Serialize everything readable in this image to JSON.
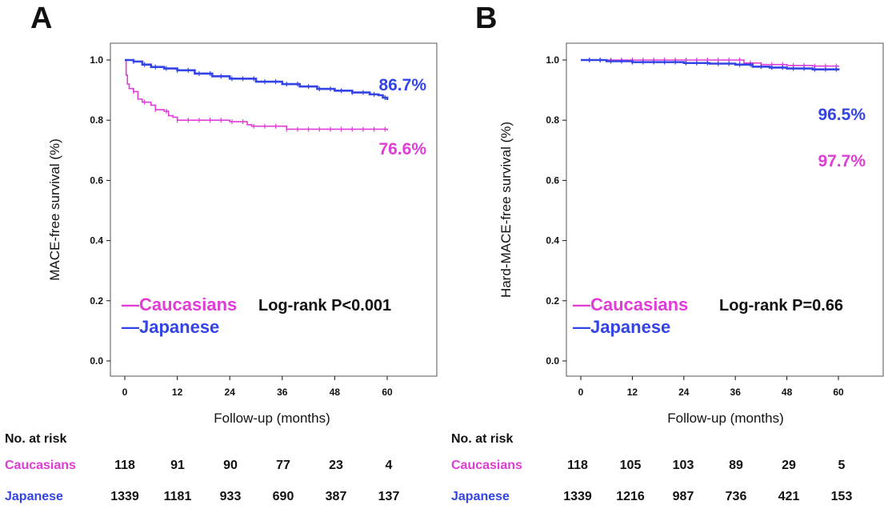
{
  "colors": {
    "caucasians": "#e03cd6",
    "japanese": "#3344e6",
    "axis": "#111111"
  },
  "chart_data": [
    {
      "id": "A",
      "type": "line",
      "panel_label": "A",
      "title": "",
      "ylabel": "MACE-free survival (%)",
      "xlabel": "Follow-up (months)",
      "xlim": [
        0,
        60
      ],
      "ylim": [
        0,
        1.0
      ],
      "xticks": [
        "0",
        "12",
        "24",
        "36",
        "48",
        "60"
      ],
      "yticks": [
        "0.0",
        "0.2",
        "0.4",
        "0.6",
        "0.8",
        "1.0"
      ],
      "series": [
        {
          "name": "Caucasians",
          "color": "#e03cd6",
          "final_label": "76.6%",
          "points": [
            [
              0,
              1.0
            ],
            [
              0.3,
              0.95
            ],
            [
              0.6,
              0.92
            ],
            [
              1,
              0.905
            ],
            [
              2,
              0.895
            ],
            [
              3,
              0.87
            ],
            [
              4,
              0.86
            ],
            [
              6,
              0.85
            ],
            [
              7,
              0.835
            ],
            [
              9,
              0.83
            ],
            [
              10,
              0.815
            ],
            [
              11,
              0.81
            ],
            [
              12,
              0.8
            ],
            [
              24,
              0.795
            ],
            [
              28,
              0.785
            ],
            [
              29,
              0.78
            ],
            [
              35,
              0.78
            ],
            [
              37,
              0.77
            ],
            [
              44,
              0.77
            ],
            [
              60,
              0.766
            ]
          ]
        },
        {
          "name": "Japanese",
          "color": "#3344e6",
          "final_label": "86.7%",
          "points": [
            [
              0,
              1.0
            ],
            [
              2,
              0.995
            ],
            [
              4,
              0.985
            ],
            [
              6,
              0.977
            ],
            [
              9,
              0.972
            ],
            [
              12,
              0.966
            ],
            [
              16,
              0.955
            ],
            [
              20,
              0.946
            ],
            [
              24,
              0.938
            ],
            [
              30,
              0.928
            ],
            [
              36,
              0.92
            ],
            [
              40,
              0.912
            ],
            [
              44,
              0.904
            ],
            [
              48,
              0.898
            ],
            [
              52,
              0.892
            ],
            [
              56,
              0.886
            ],
            [
              58,
              0.883
            ],
            [
              59,
              0.875
            ],
            [
              60,
              0.867
            ]
          ]
        }
      ],
      "log_rank": "Log-rank P<0.001",
      "legend": [
        "—Caucasians",
        "—Japanese"
      ],
      "risk_table": {
        "title": "No. at risk",
        "rows": [
          {
            "label": "Caucasians",
            "values": [
              "118",
              "91",
              "90",
              "77",
              "23",
              "4"
            ]
          },
          {
            "label": "Japanese",
            "values": [
              "1339",
              "1181",
              "933",
              "690",
              "387",
              "137"
            ]
          }
        ]
      }
    },
    {
      "id": "B",
      "type": "line",
      "panel_label": "B",
      "title": "",
      "ylabel": "Hard-MACE-free survival (%)",
      "xlabel": "Follow-up (months)",
      "xlim": [
        0,
        60
      ],
      "ylim": [
        0,
        1.0
      ],
      "xticks": [
        "0",
        "12",
        "24",
        "36",
        "48",
        "60"
      ],
      "yticks": [
        "0.0",
        "0.2",
        "0.4",
        "0.6",
        "0.8",
        "1.0"
      ],
      "series": [
        {
          "name": "Caucasians",
          "color": "#e03cd6",
          "final_label": "97.7%",
          "points": [
            [
              0,
              1.0
            ],
            [
              12,
              1.0
            ],
            [
              24,
              1.0
            ],
            [
              36,
              1.0
            ],
            [
              38,
              0.99
            ],
            [
              42,
              0.985
            ],
            [
              48,
              0.982
            ],
            [
              54,
              0.98
            ],
            [
              60,
              0.977
            ]
          ]
        },
        {
          "name": "Japanese",
          "color": "#3344e6",
          "final_label": "96.5%",
          "points": [
            [
              0,
              1.0
            ],
            [
              6,
              0.996
            ],
            [
              12,
              0.993
            ],
            [
              24,
              0.99
            ],
            [
              30,
              0.988
            ],
            [
              36,
              0.985
            ],
            [
              40,
              0.978
            ],
            [
              44,
              0.975
            ],
            [
              48,
              0.972
            ],
            [
              54,
              0.969
            ],
            [
              60,
              0.965
            ]
          ]
        }
      ],
      "log_rank": "Log-rank P=0.66",
      "legend": [
        "—Caucasians",
        "—Japanese"
      ],
      "risk_table": {
        "title": "No. at risk",
        "rows": [
          {
            "label": "Caucasians",
            "values": [
              "118",
              "105",
              "103",
              "89",
              "29",
              "5"
            ]
          },
          {
            "label": "Japanese",
            "values": [
              "1339",
              "1216",
              "987",
              "736",
              "421",
              "153"
            ]
          }
        ]
      }
    }
  ]
}
